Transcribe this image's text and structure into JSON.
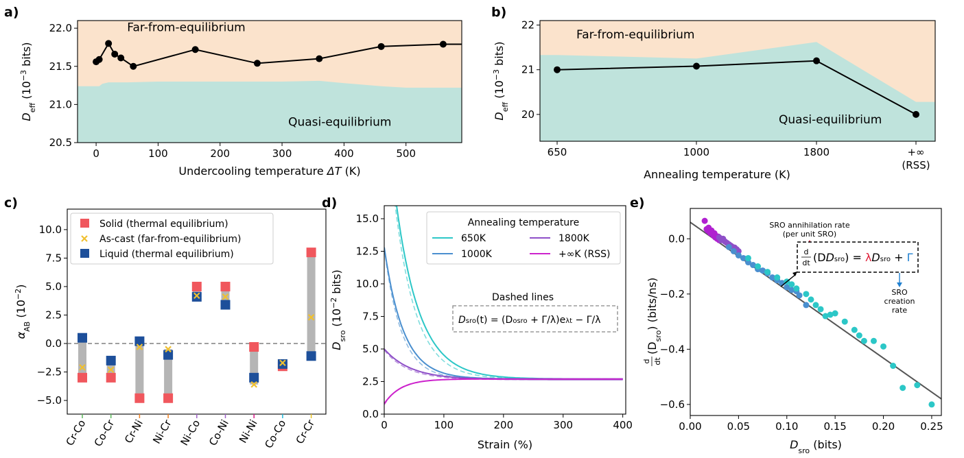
{
  "chart_data": [
    {
      "panel": "a)",
      "type": "line",
      "xlabel_main": "Undercooling temperature ",
      "xlabel_sym": "ΔT",
      "xlabel_unit": " (K)",
      "ylabel_main": "D",
      "ylabel_sub": "eff",
      "ylabel_unit": " (10",
      "ylabel_exp": "−3",
      "ylabel_end": " bits)",
      "xlim": [
        -30,
        590
      ],
      "ylim": [
        20.5,
        22.1
      ],
      "xticks": [
        0,
        100,
        200,
        300,
        400,
        500
      ],
      "yticks": [
        "20.5",
        "21.0",
        "21.5",
        "22.0"
      ],
      "region_top_label": "Far-from-equilibrium",
      "region_bottom_label": "Quasi-equilibrium",
      "colors": {
        "far": "#fbe3cc",
        "quasi": "#bfe3dc",
        "far_text": "#f0a040",
        "quasi_text": "#3aa890",
        "line": "#000000"
      },
      "boundary": {
        "x": [
          -30,
          5,
          10,
          20,
          50,
          100,
          200,
          300,
          360,
          400,
          460,
          500,
          590
        ],
        "y": [
          21.24,
          21.24,
          21.27,
          21.29,
          21.29,
          21.3,
          21.3,
          21.3,
          21.31,
          21.28,
          21.24,
          21.22,
          21.22
        ]
      },
      "x": [
        0,
        5,
        20,
        30,
        40,
        60,
        160,
        260,
        360,
        460,
        560
      ],
      "y": [
        21.56,
        21.59,
        21.8,
        21.66,
        21.61,
        21.5,
        21.72,
        21.54,
        21.6,
        21.76,
        21.79
      ]
    },
    {
      "panel": "b)",
      "type": "line",
      "xlabel": "Annealing temperature (K)",
      "ylabel_main": "D",
      "ylabel_sub": "eff",
      "ylabel_unit": " (10",
      "ylabel_exp": "−3",
      "ylabel_end": " bits)",
      "ylim": [
        19.4,
        22.1
      ],
      "yticks": [
        "20",
        "21",
        "22"
      ],
      "categories": [
        "650",
        "1000",
        "1800",
        "+∞"
      ],
      "category_extra": "(RSS)",
      "category_colors": [
        "#2cc7c7",
        "#4a90d0",
        "#8e4fc8",
        "#cc22cc"
      ],
      "region_top_label": "Far-from-equilibrium",
      "region_bottom_label": "Quasi-equilibrium",
      "boundary_y": [
        21.33,
        21.25,
        21.62,
        20.28
      ],
      "y": [
        21.0,
        21.08,
        21.2,
        20.0
      ]
    },
    {
      "panel": "c)",
      "type": "bar",
      "ylabel_main": "α",
      "ylabel_sub": "AB",
      "ylabel_unit": " (10",
      "ylabel_exp": "−2",
      "ylabel_end": ")",
      "ylim": [
        -6.2,
        11.8
      ],
      "yticks": [
        "−5.0",
        "−2.5",
        "0.0",
        "2.5",
        "5.0",
        "7.5",
        "10.0"
      ],
      "categories": [
        "Cr-Co",
        "Co-Cr",
        "Cr-Ni",
        "Ni-Cr",
        "Ni-Co",
        "Co-Ni",
        "Ni-Ni",
        "Co-Co",
        "Cr-Cr"
      ],
      "category_colors": [
        "#5cb85c",
        "#5cb85c",
        "#f08020",
        "#f08020",
        "#a060c8",
        "#a060c8",
        "#d81b8a",
        "#20b8d8",
        "#e8c020"
      ],
      "legend": [
        "Solid (thermal equilibrium)",
        "As-cast (far-from-equilibrium)",
        "Liquid (thermal equilibrium)"
      ],
      "colors": {
        "solid": "#f0575d",
        "ascast": "#f0c030",
        "liquid": "#1d4f9a",
        "range": "#b5b5b5"
      },
      "series": [
        {
          "name": "Solid (thermal equilibrium)",
          "values": [
            -3.0,
            -3.0,
            -4.8,
            -4.8,
            5.0,
            5.0,
            -0.3,
            -2.0,
            8.0
          ]
        },
        {
          "name": "As-cast (far-from-equilibrium)",
          "values": [
            -2.1,
            -2.3,
            -0.3,
            -0.5,
            4.2,
            4.1,
            -3.6,
            -1.7,
            2.3
          ]
        },
        {
          "name": "Liquid (thermal equilibrium)",
          "values": [
            0.5,
            -1.5,
            0.2,
            -1.0,
            4.1,
            3.4,
            -3.0,
            -1.8,
            -1.1
          ]
        }
      ]
    },
    {
      "panel": "d)",
      "type": "line",
      "xlabel": "Strain (%)",
      "ylabel_main": "D",
      "ylabel_sub": "sro",
      "ylabel_unit": " (10",
      "ylabel_exp": "−2",
      "ylabel_end": " bits)",
      "xlim": [
        0,
        405
      ],
      "ylim": [
        0,
        16
      ],
      "xticks": [
        0,
        100,
        200,
        300,
        400
      ],
      "yticks": [
        "0.0",
        "2.5",
        "5.0",
        "7.5",
        "10.0",
        "12.5",
        "15.0"
      ],
      "legend_title": "Annealing temperature",
      "series": [
        {
          "name": "650K",
          "color": "#2cc7c7",
          "d0": 25.0,
          "dinf": 2.7,
          "tau": 40
        },
        {
          "name": "1000K",
          "color": "#4a8fcf",
          "d0": 12.8,
          "dinf": 2.7,
          "tau": 32
        },
        {
          "name": "1800K",
          "color": "#8e4fc8",
          "d0": 5.0,
          "dinf": 2.65,
          "tau": 45
        },
        {
          "name": "+∞K (RSS)",
          "color": "#cc22cc",
          "d0": 0.8,
          "dinf": 2.7,
          "tau": 28
        }
      ],
      "annotation_title": "Dashed lines",
      "formula_lhs": "D",
      "formula_lhs_sub": "sro",
      "formula_lhs_arg": "(t) = (D",
      "formula_o_sup": "o",
      "formula_o_sub": "sro",
      "formula_plus": " + ",
      "formula_gamma": "Γ",
      "formula_lambda": "λ",
      "formula_close": ")e",
      "formula_exp": "λt",
      "formula_minus": " − "
    },
    {
      "panel": "e)",
      "type": "scatter",
      "xlabel_main": "D",
      "xlabel_sub": "sro",
      "xlabel_unit": " (bits)",
      "ylabel": "d/dt(D_sro) (bits/ns)",
      "ylabel_d": "d",
      "ylabel_dt": "dt",
      "ylabel_mid": "(D",
      "ylabel_sub": "sro",
      "ylabel_end": ") (bits/ns)",
      "xlim": [
        0.0,
        0.26
      ],
      "ylim": [
        -0.64,
        0.11
      ],
      "xticks": [
        "0.00",
        "0.05",
        "0.10",
        "0.15",
        "0.20",
        "0.25"
      ],
      "yticks": [
        "−0.6",
        "−0.4",
        "−0.2",
        "0.0"
      ],
      "fit": {
        "x": [
          0.0,
          0.26
        ],
        "y": [
          0.06,
          -0.58
        ]
      },
      "ann_top": "SRO annihilation rate",
      "ann_top2": "(per unit SRO)",
      "ann_bottom": [
        "SRO",
        "creation",
        "rate"
      ],
      "eq_d": "d",
      "eq_dt": "dt",
      "eq_arg": "(D",
      "eq_sub": "sro",
      "eq_eq": ") = ",
      "eq_lambda": "λ",
      "eq_D": "D",
      "eq_plus": " + ",
      "eq_gamma": "Γ",
      "colors": {
        "lambda": "#e0203a",
        "gamma": "#2080d0"
      },
      "groups": [
        {
          "color": "#b020d0",
          "x": [
            0.015,
            0.017,
            0.018,
            0.019,
            0.02,
            0.021,
            0.022,
            0.023,
            0.024,
            0.025,
            0.026,
            0.027,
            0.028,
            0.029,
            0.03
          ],
          "y": [
            0.065,
            0.035,
            0.03,
            0.04,
            0.025,
            0.02,
            0.03,
            0.018,
            0.012,
            0.02,
            0.005,
            0.01,
            0.0,
            0.008,
            -0.005
          ]
        },
        {
          "color": "#8e4fc8",
          "x": [
            0.03,
            0.032,
            0.034,
            0.036,
            0.038,
            0.04,
            0.042,
            0.044,
            0.046,
            0.048,
            0.05
          ],
          "y": [
            0.005,
            -0.005,
            0.0,
            -0.01,
            -0.015,
            -0.02,
            -0.025,
            -0.03,
            -0.032,
            -0.038,
            -0.045
          ]
        },
        {
          "color": "#4a8fcf",
          "x": [
            0.04,
            0.045,
            0.05,
            0.055,
            0.06,
            0.065,
            0.07,
            0.075,
            0.08,
            0.085,
            0.09,
            0.095,
            0.1,
            0.105,
            0.11,
            0.113,
            0.12
          ],
          "y": [
            -0.03,
            -0.045,
            -0.06,
            -0.07,
            -0.085,
            -0.095,
            -0.11,
            -0.115,
            -0.125,
            -0.14,
            -0.15,
            -0.16,
            -0.175,
            -0.185,
            -0.19,
            -0.205,
            -0.24
          ]
        },
        {
          "color": "#2cc7c7",
          "x": [
            0.06,
            0.07,
            0.08,
            0.09,
            0.1,
            0.105,
            0.11,
            0.12,
            0.125,
            0.13,
            0.135,
            0.14,
            0.145,
            0.15,
            0.16,
            0.17,
            0.175,
            0.18,
            0.19,
            0.2,
            0.21,
            0.22,
            0.235,
            0.25
          ],
          "y": [
            -0.07,
            -0.1,
            -0.12,
            -0.14,
            -0.155,
            -0.165,
            -0.18,
            -0.2,
            -0.22,
            -0.24,
            -0.255,
            -0.28,
            -0.275,
            -0.27,
            -0.3,
            -0.33,
            -0.35,
            -0.37,
            -0.37,
            -0.39,
            -0.46,
            -0.54,
            -0.53,
            -0.6
          ]
        }
      ]
    }
  ]
}
